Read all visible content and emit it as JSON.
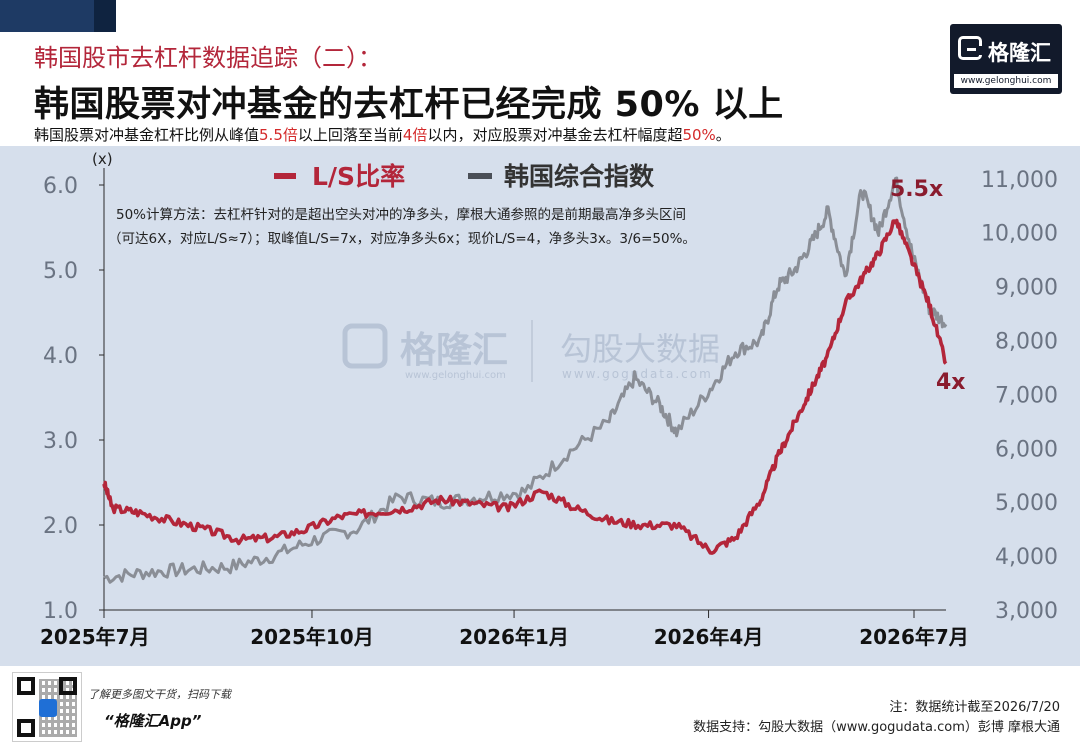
{
  "header": {
    "top_title": "韩国股市去杠杆数据追踪（二）：",
    "main_title": "韩国股票对冲基金的去杠杆已经完成 50% 以上",
    "subtitle_parts": [
      "韩国股票对冲基金杠杆比例从峰值",
      "5.5倍",
      "以上回落至当前",
      "4倍",
      "以内，对应股票对冲基金去杠杆幅度超",
      "50%",
      "。"
    ]
  },
  "logo": {
    "name": "格隆汇",
    "url": "www.gelonghui.com"
  },
  "chart_data": {
    "type": "line",
    "x_ticks": [
      "2025年7月",
      "2025年10月",
      "2026年1月",
      "2026年4月",
      "2026年7月"
    ],
    "left_axis": {
      "unit": "(x)",
      "ticks": [
        "1.0",
        "2.0",
        "3.0",
        "4.0",
        "5.0",
        "6.0"
      ],
      "ylim": [
        1.0,
        6.2
      ]
    },
    "right_axis": {
      "ticks": [
        "3,000",
        "4,000",
        "5,000",
        "6,000",
        "7,000",
        "8,000",
        "9,000",
        "10,000",
        "11,000"
      ],
      "ylim": [
        3000,
        11200
      ]
    },
    "legend": {
      "placement": "top",
      "items": [
        "L/S比率",
        "韩国综合指数"
      ]
    },
    "method_note": [
      "50%计算方法：去杠杆针对的是超出空头对冲的净多头，摩根大通参照的是前期最高净多头区间",
      "（可达6X，对应L/S≈7）；取峰值L/S=7x，对应净多头6x；现价L/S=4，净多头3x。3/6=50%。"
    ],
    "annotations": [
      {
        "text": "5.5x",
        "x": 0.94,
        "y": 5.5
      },
      {
        "text": "4x",
        "x": 1.0,
        "y": 4.0
      }
    ],
    "watermarks": [
      "格隆汇",
      "www.gelonghui.com",
      "勾股大数据",
      "www.gogudata.com"
    ],
    "series": [
      {
        "name": "L/S比率",
        "color": "#b3263a",
        "axis": "left",
        "x": [
          0.0,
          0.01,
          0.04,
          0.08,
          0.12,
          0.16,
          0.2,
          0.24,
          0.28,
          0.32,
          0.36,
          0.4,
          0.44,
          0.48,
          0.52,
          0.56,
          0.6,
          0.64,
          0.68,
          0.72,
          0.75,
          0.78,
          0.8,
          0.82,
          0.84,
          0.86,
          0.88,
          0.9,
          0.92,
          0.94,
          0.96,
          0.98,
          1.0
        ],
        "values": [
          2.5,
          2.2,
          2.15,
          2.05,
          1.95,
          1.83,
          1.85,
          1.95,
          2.1,
          2.15,
          2.2,
          2.3,
          2.25,
          2.2,
          2.4,
          2.2,
          2.05,
          2.0,
          2.0,
          1.7,
          1.85,
          2.3,
          2.8,
          3.2,
          3.6,
          4.0,
          4.6,
          4.9,
          5.2,
          5.6,
          5.1,
          4.6,
          3.9
        ]
      },
      {
        "name": "韩国综合指数",
        "color": "#8a8e96",
        "axis": "right",
        "x": [
          0.0,
          0.05,
          0.1,
          0.15,
          0.2,
          0.25,
          0.3,
          0.35,
          0.4,
          0.45,
          0.5,
          0.55,
          0.6,
          0.63,
          0.66,
          0.68,
          0.72,
          0.75,
          0.78,
          0.8,
          0.82,
          0.84,
          0.86,
          0.88,
          0.9,
          0.92,
          0.94,
          0.96,
          0.98,
          1.0
        ],
        "values": [
          3600,
          3700,
          3750,
          3800,
          4000,
          4300,
          4500,
          5100,
          5000,
          5100,
          5200,
          5900,
          6500,
          7300,
          6800,
          6300,
          7100,
          7800,
          8000,
          9000,
          9300,
          9800,
          10400,
          9200,
          10800,
          10000,
          11000,
          9600,
          8600,
          8300
        ]
      }
    ]
  },
  "footer": {
    "qr_caption_1": "了解更多图文干货，扫码下载",
    "qr_caption_2": "“格隆汇App”",
    "note_1": "注：数据统计截至2026/7/20",
    "note_2": "数据支持：勾股大数据（www.gogudata.com）彭博  摩根大通"
  }
}
